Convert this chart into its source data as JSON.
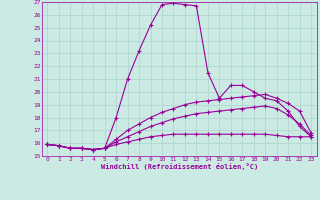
{
  "xlabel": "Windchill (Refroidissement éolien,°C)",
  "background_color": "#cceae4",
  "grid_color": "#aad4cc",
  "line_color": "#990099",
  "xlim": [
    -0.5,
    23.5
  ],
  "ylim": [
    15,
    27
  ],
  "yticks": [
    15,
    16,
    17,
    18,
    19,
    20,
    21,
    22,
    23,
    24,
    25,
    26,
    27
  ],
  "xticks": [
    0,
    1,
    2,
    3,
    4,
    5,
    6,
    7,
    8,
    9,
    10,
    11,
    12,
    13,
    14,
    15,
    16,
    17,
    18,
    19,
    20,
    21,
    22,
    23
  ],
  "line1_x": [
    0,
    1,
    2,
    3,
    4,
    5,
    6,
    7,
    8,
    9,
    10,
    11,
    12,
    13,
    14,
    15,
    16,
    17,
    18,
    19,
    20,
    21,
    22,
    23
  ],
  "line1_y": [
    15.9,
    15.8,
    15.6,
    15.6,
    15.5,
    15.6,
    18.0,
    21.0,
    23.2,
    25.2,
    26.8,
    26.9,
    26.8,
    26.7,
    21.5,
    19.5,
    20.5,
    20.5,
    20.0,
    19.5,
    19.3,
    18.5,
    17.3,
    16.5
  ],
  "line2_x": [
    0,
    1,
    2,
    3,
    4,
    5,
    6,
    7,
    8,
    9,
    10,
    11,
    12,
    13,
    14,
    15,
    16,
    17,
    18,
    19,
    20,
    21,
    22,
    23
  ],
  "line2_y": [
    15.9,
    15.8,
    15.6,
    15.6,
    15.5,
    15.6,
    16.3,
    17.0,
    17.5,
    18.0,
    18.4,
    18.7,
    19.0,
    19.2,
    19.3,
    19.4,
    19.5,
    19.6,
    19.7,
    19.8,
    19.5,
    19.1,
    18.5,
    16.8
  ],
  "line3_x": [
    0,
    1,
    2,
    3,
    4,
    5,
    6,
    7,
    8,
    9,
    10,
    11,
    12,
    13,
    14,
    15,
    16,
    17,
    18,
    19,
    20,
    21,
    22,
    23
  ],
  "line3_y": [
    15.9,
    15.8,
    15.6,
    15.6,
    15.5,
    15.6,
    16.1,
    16.5,
    16.9,
    17.3,
    17.6,
    17.9,
    18.1,
    18.3,
    18.4,
    18.5,
    18.6,
    18.7,
    18.8,
    18.9,
    18.7,
    18.2,
    17.5,
    16.6
  ],
  "line4_x": [
    0,
    1,
    2,
    3,
    4,
    5,
    6,
    7,
    8,
    9,
    10,
    11,
    12,
    13,
    14,
    15,
    16,
    17,
    18,
    19,
    20,
    21,
    22,
    23
  ],
  "line4_y": [
    15.9,
    15.8,
    15.6,
    15.6,
    15.5,
    15.6,
    15.9,
    16.1,
    16.3,
    16.5,
    16.6,
    16.7,
    16.7,
    16.7,
    16.7,
    16.7,
    16.7,
    16.7,
    16.7,
    16.7,
    16.6,
    16.5,
    16.5,
    16.5
  ]
}
